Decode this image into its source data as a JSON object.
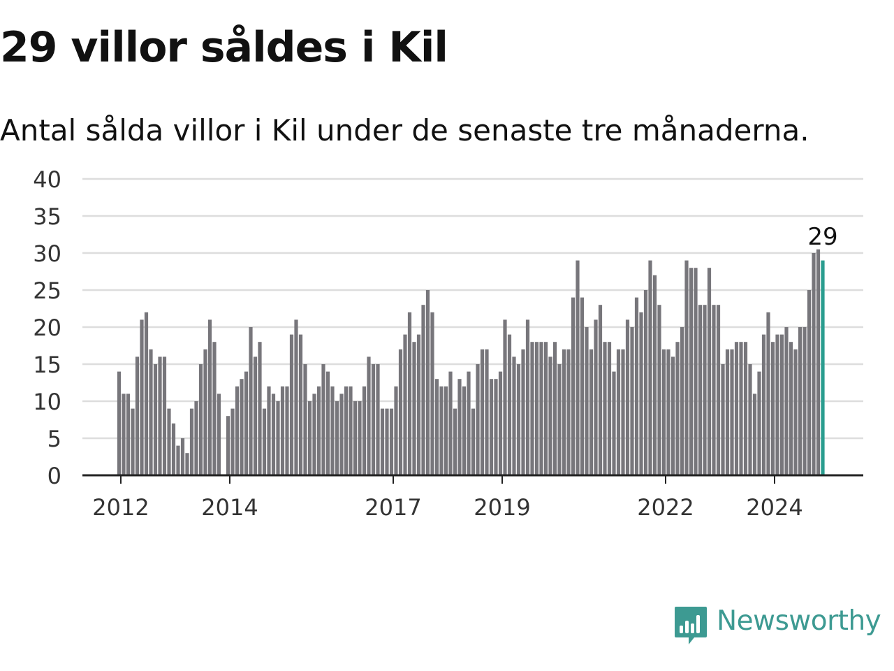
{
  "header": {
    "title": "29 villor såldes i Kil",
    "subtitle": "Antal sålda villor i Kil under de senaste tre månaderna."
  },
  "brand": {
    "name": "Newsworthy",
    "logo_icon": "bar-chart-speech-bubble-icon"
  },
  "colors": {
    "bar": "#77767b",
    "highlight": "#2a9d8f",
    "grid": "#dddddd",
    "axis": "#222222",
    "text": "#333333"
  },
  "chart_data": {
    "type": "bar",
    "title": "29 villor såldes i Kil",
    "subtitle": "Antal sålda villor i Kil under de senaste tre månaderna.",
    "ylim": [
      0,
      40
    ],
    "yticks": [
      "0",
      "5",
      "10",
      "15",
      "20",
      "25",
      "30",
      "35",
      "40"
    ],
    "xticks": [
      {
        "label": "2012",
        "index": 0
      },
      {
        "label": "2014",
        "index": 24
      },
      {
        "label": "2017",
        "index": 60
      },
      {
        "label": "2019",
        "index": 84
      },
      {
        "label": "2022",
        "index": 120
      },
      {
        "label": "2024",
        "index": 144
      }
    ],
    "first_period": "2012-01",
    "grid": true,
    "values": [
      14,
      11,
      11,
      9,
      16,
      21,
      22,
      17,
      15,
      16,
      16,
      9,
      7,
      4,
      5,
      3,
      9,
      10,
      15,
      17,
      21,
      18,
      11,
      0,
      8,
      9,
      12,
      13,
      14,
      20,
      16,
      18,
      9,
      12,
      11,
      10,
      12,
      12,
      19,
      21,
      19,
      15,
      10,
      11,
      12,
      15,
      14,
      12,
      10,
      11,
      12,
      12,
      10,
      10,
      12,
      16,
      15,
      15,
      9,
      9,
      9,
      12,
      17,
      19,
      22,
      18,
      19,
      23,
      25,
      22,
      13,
      12,
      12,
      14,
      9,
      13,
      12,
      14,
      9,
      15,
      17,
      17,
      13,
      13,
      14,
      21,
      19,
      16,
      15,
      17,
      21,
      18,
      18,
      18,
      18,
      16,
      18,
      15,
      17,
      17,
      24,
      29,
      24,
      20,
      17,
      21,
      23,
      18,
      18,
      14,
      17,
      17,
      21,
      20,
      24,
      22,
      25,
      29,
      27,
      23,
      17,
      17,
      16,
      18,
      20,
      29,
      28,
      28,
      23,
      23,
      28,
      23,
      23,
      15,
      17,
      17,
      18,
      18,
      18,
      15,
      11,
      14,
      19,
      22,
      18,
      19,
      19,
      20,
      18,
      17,
      20,
      20,
      25,
      30,
      30.5,
      29
    ],
    "highlight": {
      "index": 155,
      "value": 29,
      "label": "29"
    }
  }
}
